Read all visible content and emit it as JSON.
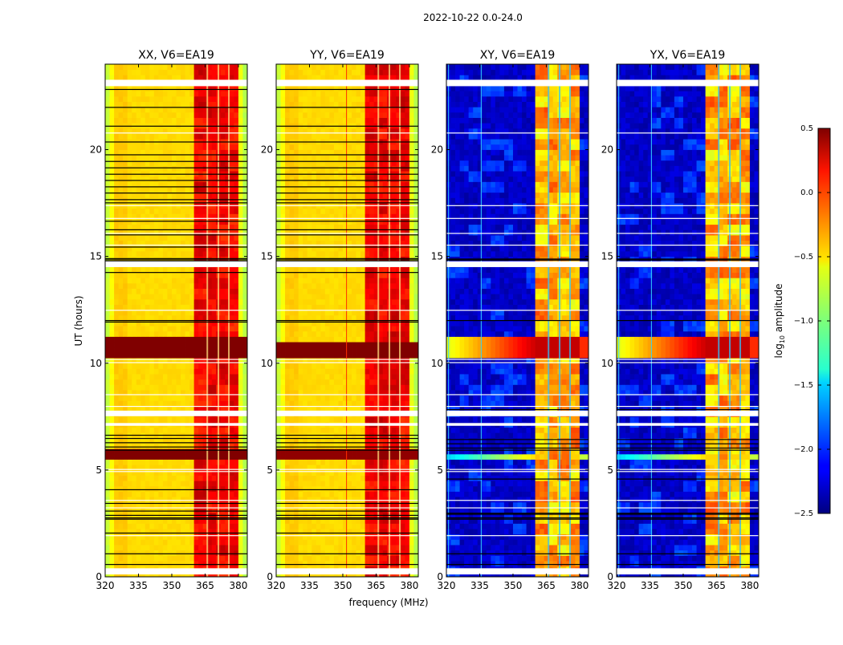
{
  "chart_data": {
    "type": "heatmap",
    "title": "2022-10-22 0.0-24.0",
    "xlabel": "frequency (MHz)",
    "ylabel": "UT (hours)",
    "xlim": [
      320,
      384
    ],
    "ylim": [
      0,
      24
    ],
    "xticks": [
      320,
      335,
      350,
      365,
      380
    ],
    "yticks": [
      0,
      5,
      10,
      15,
      20
    ],
    "colorbar": {
      "label_main": "log",
      "label_sub": "10",
      "label_rest": " amplitude",
      "colormap": "jet",
      "range": [
        -2.5,
        0.5
      ],
      "ticks": [
        "0.5",
        "0.0",
        "−0.5",
        "−1.0",
        "−1.5",
        "−2.0",
        "−2.5"
      ],
      "tick_values": [
        0.5,
        0.0,
        -0.5,
        -1.0,
        -1.5,
        -2.0,
        -2.5
      ]
    },
    "grid_step": {
      "freq_mhz": 2,
      "time_hours": 0.25
    },
    "panels": [
      {
        "title": "XX, V6=EA19",
        "kind": "parallel",
        "seed": 1,
        "events": [
          {
            "t0": 10.4,
            "t1": 11.1,
            "level": 0.5
          },
          {
            "t0": 5.55,
            "t1": 5.85,
            "level": 0.5
          }
        ],
        "vlines": []
      },
      {
        "title": "YY, V6=EA19",
        "kind": "parallel",
        "seed": 2,
        "events": [
          {
            "t0": 10.45,
            "t1": 11.0,
            "level": 0.5
          },
          {
            "t0": 5.6,
            "t1": 5.8,
            "level": 0.45
          }
        ],
        "vlines": [
          {
            "f": 351.5,
            "color": "#ff3000"
          }
        ]
      },
      {
        "title": "XY, V6=EA19",
        "kind": "cross",
        "seed": 3,
        "events": [
          {
            "t0": 10.45,
            "t1": 11.05,
            "level": 0.3
          },
          {
            "t0": 5.6,
            "t1": 5.75,
            "level": -0.5
          }
        ],
        "vlines": [
          {
            "f": 320.8,
            "color": "#30d0ff"
          },
          {
            "f": 335.5,
            "color": "#30d0ff"
          }
        ]
      },
      {
        "title": "YX, V6=EA19",
        "kind": "cross",
        "seed": 4,
        "events": [
          {
            "t0": 10.45,
            "t1": 11.05,
            "level": 0.3
          },
          {
            "t0": 5.6,
            "t1": 5.75,
            "level": -0.5
          }
        ],
        "vlines": [
          {
            "f": 320.8,
            "color": "#30d0ff"
          },
          {
            "f": 335.5,
            "color": "#30d0ff"
          }
        ]
      }
    ],
    "bright_band_mhz": [
      360,
      380
    ],
    "band_gaps_mhz": [
      366,
      371,
      375.7
    ],
    "flagged_ranges_hours": [
      [
        22.97,
        23.27
      ],
      [
        14.5,
        14.77
      ],
      [
        7.52,
        7.78
      ],
      [
        7.07,
        7.2
      ],
      [
        0.11,
        0.4
      ]
    ],
    "white_lines_hours": [
      20.8,
      17.4,
      16.8,
      16.1,
      15.55,
      12.5,
      10.2,
      10.05,
      8.55,
      8.0,
      5.05,
      4.95,
      3.6,
      3.25,
      1.95
    ],
    "black_lines_parallel_hours": [
      22.84,
      22.0,
      21.12,
      20.38,
      19.78,
      19.47,
      19.17,
      18.87,
      18.58,
      18.28,
      17.99,
      17.68,
      17.53,
      16.67,
      16.27,
      16.03,
      15.46,
      14.92,
      14.86,
      14.8,
      14.27,
      12.02,
      11.95,
      6.65,
      6.5,
      6.3,
      6.1,
      5.95,
      4.1,
      3.46,
      3.1,
      2.9,
      2.78,
      2.72,
      2.07,
      1.1,
      0.6
    ],
    "black_lines_cross_hours": [
      14.9,
      14.85,
      12.02,
      7.85,
      6.45,
      6.25,
      6.05,
      5.95,
      4.6,
      3.0,
      2.95,
      2.78,
      2.72,
      1.1,
      0.6
    ]
  }
}
